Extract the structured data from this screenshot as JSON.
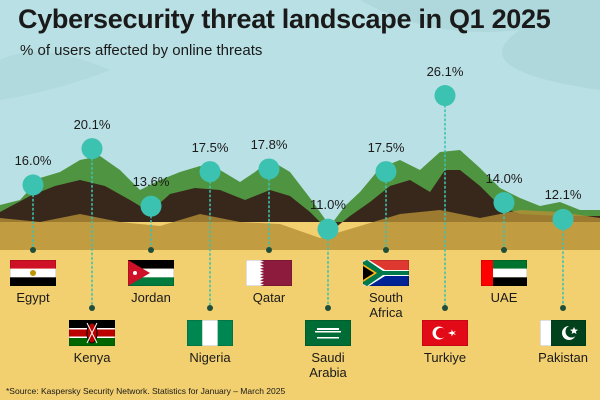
{
  "title": "Cybersecurity threat landscape in Q1 2025",
  "subtitle": "% of users affected by online threats",
  "source": "*Source: Kaspersky Security Network. Statistics for January – March 2025",
  "colors": {
    "sky": "#b9e0e4",
    "sand": "#f2cf6f",
    "marker": "#3cc2b0",
    "hill_light": "#4f9440",
    "hill_dark": "#38281b",
    "leaf": "#a8d2d6"
  },
  "chart_data": {
    "type": "scatter",
    "title": "Cybersecurity threat landscape in Q1 2025",
    "subtitle": "% of users affected by online threats",
    "unit": "%",
    "categories": [
      "Egypt",
      "Kenya",
      "Jordan",
      "Nigeria",
      "Qatar",
      "Saudi Arabia",
      "South Africa",
      "Turkiye",
      "UAE",
      "Pakistan"
    ],
    "values": [
      16.0,
      20.1,
      13.6,
      17.5,
      17.8,
      11.0,
      17.5,
      26.1,
      14.0,
      12.1
    ],
    "value_labels": [
      "16.0%",
      "20.1%",
      "13.6%",
      "17.5%",
      "17.8%",
      "11.0%",
      "17.5%",
      "26.1%",
      "14.0%",
      "12.1%"
    ],
    "country_labels": [
      "Egypt",
      "Kenya",
      "Jordan",
      "Nigeria",
      "Qatar",
      "Saudi\nArabia",
      "South\nAfrica",
      "Turkiye",
      "UAE",
      "Pakistan"
    ],
    "flags": [
      "egypt-flag",
      "kenya-flag",
      "jordan-flag",
      "nigeria-flag",
      "qatar-flag",
      "saudi-arabia-flag",
      "south-africa-flag",
      "turkiye-flag",
      "uae-flag",
      "pakistan-flag"
    ],
    "grid": false,
    "legend": "none"
  }
}
